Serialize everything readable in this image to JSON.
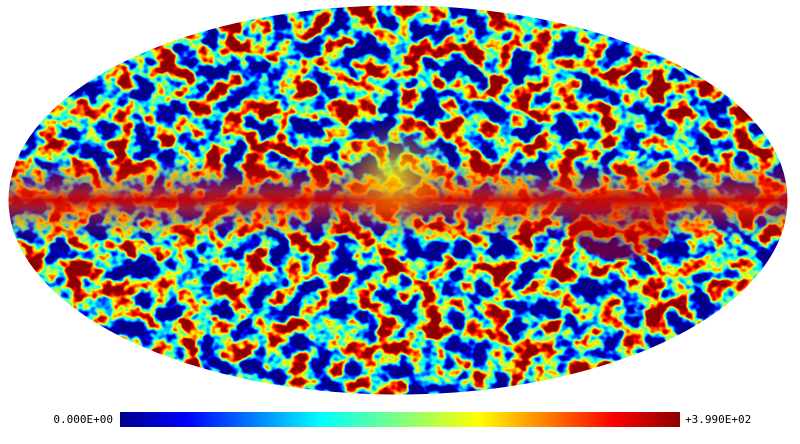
{
  "colorbar": {
    "min_label": "0.000E+00",
    "max_label": "+3.990E+02"
  }
}
